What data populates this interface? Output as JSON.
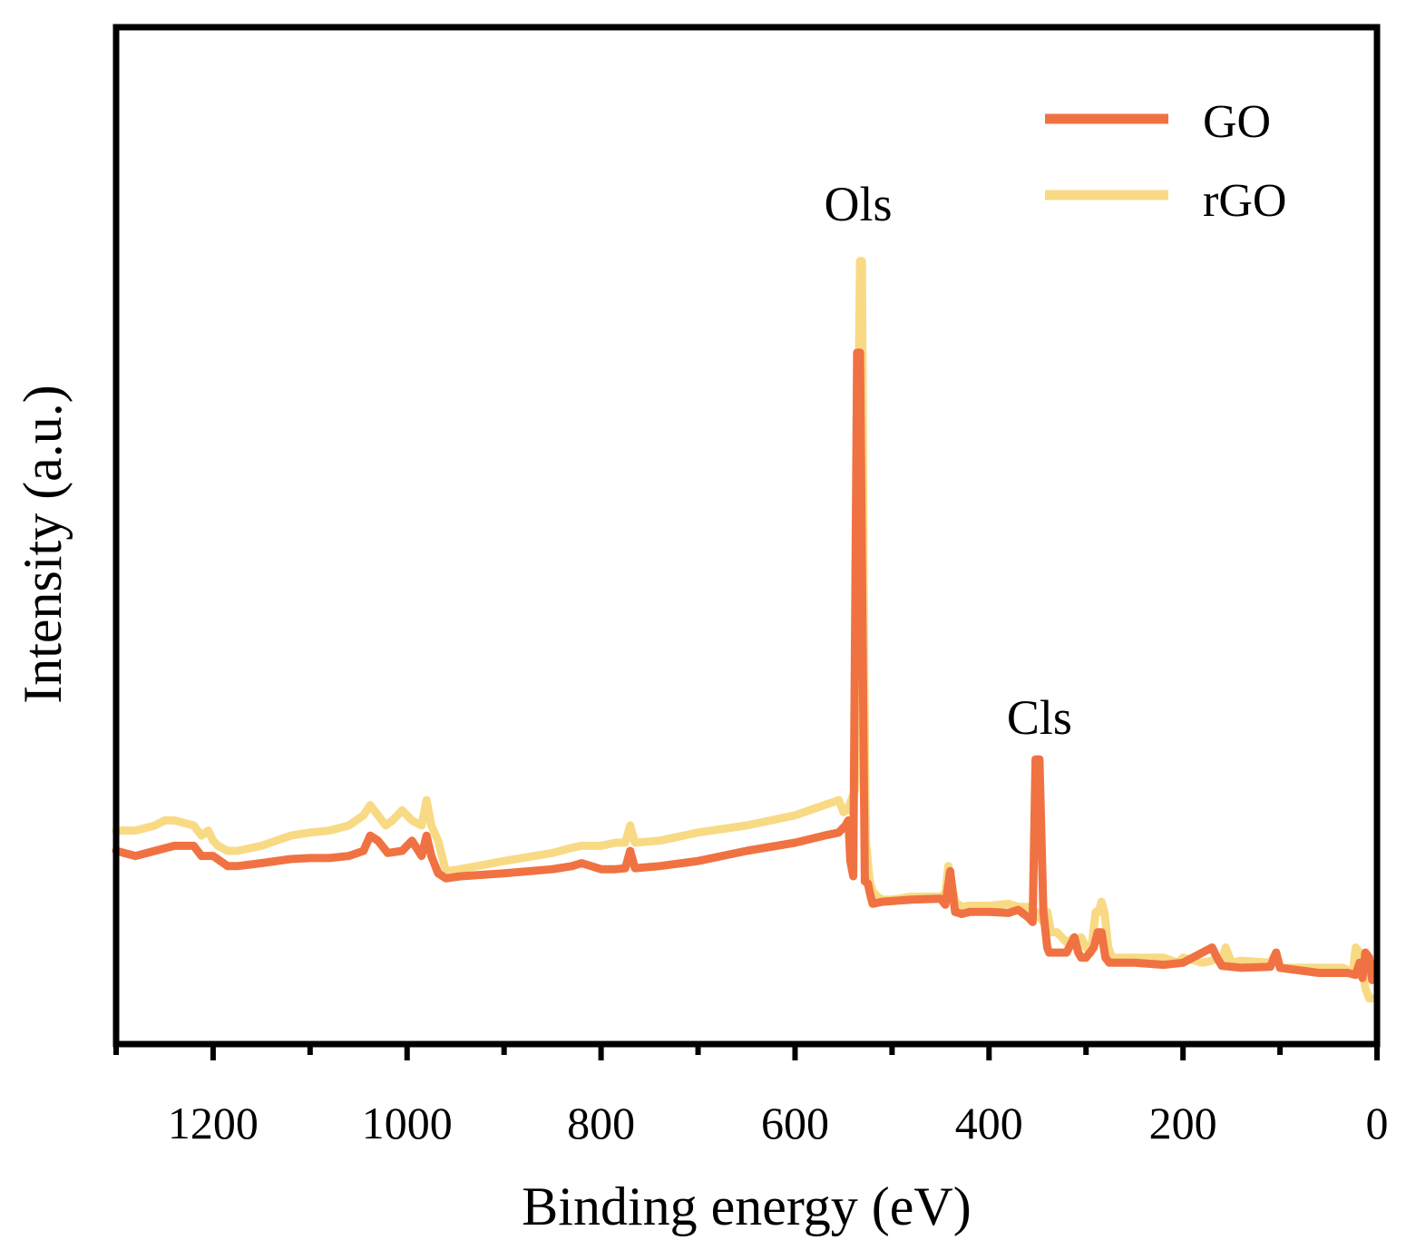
{
  "chart_data": {
    "type": "line",
    "title": "",
    "xlabel": "Binding energy (eV)",
    "ylabel": "Intensity (a.u.)",
    "xlim": [
      1300,
      0
    ],
    "ylim": [
      0,
      100
    ],
    "x_ticks": [
      1200,
      1000,
      800,
      600,
      400,
      200,
      0
    ],
    "x_minor_ticks": [
      1300,
      1100,
      900,
      700,
      500,
      300,
      100
    ],
    "legend_position": "top-right",
    "annotations": [
      {
        "text": "Ols",
        "x": 535,
        "y": 81
      },
      {
        "text": "Cls",
        "x": 348,
        "y": 30.5
      }
    ],
    "series": [
      {
        "name": "GO",
        "color": "#F07242",
        "x": [
          1300,
          1280,
          1260,
          1240,
          1220,
          1212,
          1200,
          1185,
          1175,
          1150,
          1120,
          1100,
          1080,
          1060,
          1045,
          1038,
          1030,
          1020,
          1005,
          995,
          985,
          980,
          975,
          968,
          960,
          945,
          900,
          850,
          830,
          820,
          800,
          785,
          775,
          770,
          765,
          740,
          700,
          650,
          600,
          570,
          555,
          548,
          545,
          543,
          540,
          536,
          533,
          530,
          528,
          525,
          522,
          520,
          510,
          480,
          450,
          445,
          440,
          435,
          428,
          420,
          400,
          380,
          370,
          360,
          355,
          352,
          348,
          344,
          340,
          338,
          320,
          312,
          308,
          305,
          300,
          292,
          288,
          284,
          280,
          276,
          270,
          250,
          220,
          200,
          180,
          170,
          165,
          160,
          140,
          110,
          104,
          100,
          60,
          30,
          22,
          18,
          15,
          12,
          8,
          5
        ],
        "values": [
          19.0,
          18.5,
          19.0,
          19.5,
          19.5,
          18.5,
          18.5,
          17.5,
          17.5,
          17.8,
          18.2,
          18.3,
          18.3,
          18.5,
          19.0,
          20.5,
          20.0,
          18.8,
          19.0,
          20.0,
          18.5,
          20.5,
          18.5,
          16.8,
          16.3,
          16.5,
          16.8,
          17.2,
          17.5,
          17.8,
          17.2,
          17.2,
          17.3,
          19.0,
          17.3,
          17.5,
          18.0,
          19.0,
          19.8,
          20.5,
          20.8,
          21.5,
          22.0,
          18.0,
          16.5,
          68.0,
          68.0,
          36.0,
          16.0,
          15.8,
          14.5,
          13.8,
          14.0,
          14.2,
          14.3,
          13.7,
          17.0,
          13.0,
          12.8,
          13.0,
          13.0,
          12.9,
          13.2,
          12.5,
          12.0,
          28.0,
          28.0,
          13.0,
          9.5,
          9.0,
          9.0,
          10.5,
          9.0,
          8.5,
          8.5,
          9.5,
          11.0,
          11.0,
          8.5,
          8.0,
          8.0,
          8.0,
          7.8,
          8.0,
          9.0,
          9.5,
          8.5,
          7.7,
          7.5,
          7.6,
          9.0,
          7.5,
          7.0,
          7.0,
          6.8,
          8.0,
          6.5,
          9.0,
          8.5,
          6.3
        ]
      },
      {
        "name": "rGO",
        "color": "#F8DA85",
        "x": [
          1300,
          1280,
          1260,
          1250,
          1240,
          1220,
          1212,
          1205,
          1200,
          1195,
          1185,
          1175,
          1150,
          1120,
          1100,
          1080,
          1060,
          1045,
          1038,
          1030,
          1022,
          1015,
          1005,
          995,
          985,
          980,
          975,
          968,
          960,
          945,
          900,
          850,
          830,
          820,
          800,
          785,
          775,
          770,
          765,
          740,
          700,
          650,
          600,
          570,
          560,
          555,
          550,
          546,
          542,
          538,
          535,
          533,
          531,
          529,
          527,
          523,
          520,
          515,
          510,
          500,
          480,
          450,
          445,
          442,
          438,
          435,
          428,
          420,
          400,
          380,
          370,
          360,
          355,
          352,
          348,
          344,
          340,
          336,
          330,
          320,
          312,
          308,
          305,
          300,
          295,
          290,
          287,
          284,
          281,
          277,
          273,
          270,
          250,
          220,
          205,
          200,
          180,
          170,
          165,
          160,
          156,
          150,
          140,
          110,
          104,
          100,
          60,
          35,
          25,
          22,
          18,
          12,
          8,
          5
        ],
        "values": [
          21.0,
          21.0,
          21.5,
          22.0,
          22.0,
          21.5,
          20.5,
          21.0,
          20.0,
          19.5,
          19.0,
          19.0,
          19.5,
          20.5,
          20.8,
          21.0,
          21.5,
          22.5,
          23.5,
          22.5,
          21.5,
          22.0,
          23.0,
          22.0,
          21.5,
          24.0,
          21.5,
          20.0,
          17.0,
          17.2,
          18.0,
          18.8,
          19.3,
          19.5,
          19.5,
          19.8,
          19.8,
          21.5,
          19.8,
          20.0,
          20.8,
          21.5,
          22.5,
          23.5,
          23.8,
          24.0,
          22.8,
          23.0,
          24.0,
          25.0,
          60.0,
          77.0,
          77.0,
          40.0,
          20.0,
          16.0,
          15.0,
          14.5,
          14.2,
          14.2,
          14.5,
          14.5,
          14.8,
          17.5,
          15.5,
          14.0,
          13.5,
          13.6,
          13.6,
          13.8,
          13.5,
          13.5,
          13.2,
          13.0,
          12.5,
          12.0,
          13.0,
          11.0,
          11.0,
          10.0,
          10.5,
          9.5,
          10.5,
          9.5,
          9.0,
          13.0,
          13.0,
          14.0,
          13.0,
          9.5,
          8.5,
          8.5,
          8.5,
          8.5,
          8.0,
          8.5,
          8.0,
          8.2,
          8.5,
          8.0,
          9.5,
          8.0,
          8.2,
          8.0,
          9.0,
          7.5,
          7.5,
          7.5,
          7.0,
          9.5,
          9.0,
          5.5,
          4.5,
          4.5
        ]
      }
    ]
  }
}
